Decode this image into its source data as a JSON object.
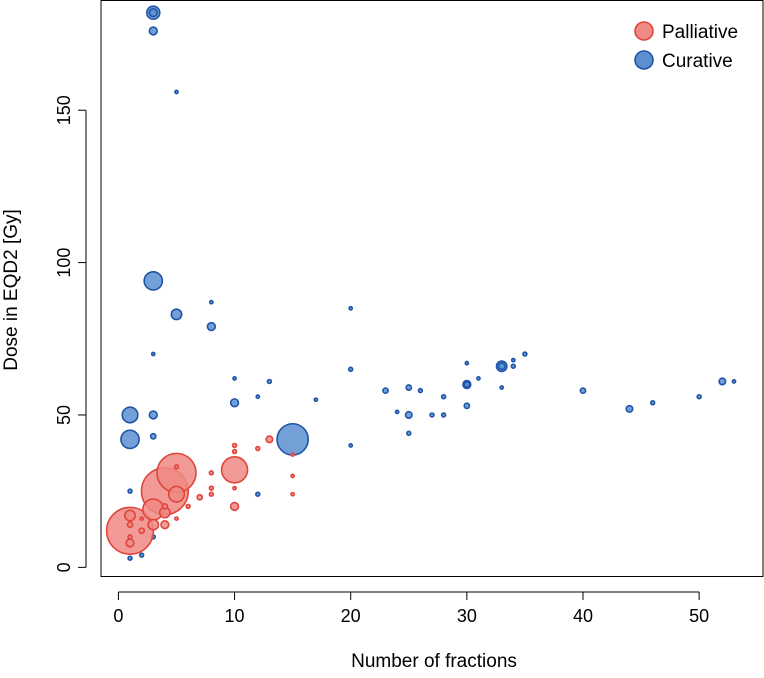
{
  "chart_data": {
    "type": "scatter",
    "title": "",
    "xlabel": "Number of fractions",
    "ylabel": "Dose in EQD2 [Gy]",
    "xlim": [
      -1.5,
      55.5
    ],
    "ylim": [
      -3,
      186
    ],
    "xticks": [
      0,
      10,
      20,
      30,
      40,
      50
    ],
    "yticks": [
      0,
      50,
      100,
      150
    ],
    "x_tick_labels": [
      "0",
      "10",
      "20",
      "30",
      "40",
      "50"
    ],
    "y_tick_labels": [
      "0",
      "50",
      "100",
      "150"
    ],
    "grid": false,
    "legend_position": "top-right",
    "bubble_size_note": "marker size encodes relative frequency (unitless)",
    "series": [
      {
        "name": "Curative",
        "color": "#5b8fd0",
        "stroke": "#1f55a8",
        "points": [
          {
            "x": 3,
            "y": 182,
            "s": 5
          },
          {
            "x": 3,
            "y": 182,
            "s": 3
          },
          {
            "x": 3,
            "y": 176,
            "s": 3
          },
          {
            "x": 5,
            "y": 156,
            "s": 1
          },
          {
            "x": 3,
            "y": 94,
            "s": 7
          },
          {
            "x": 5,
            "y": 83,
            "s": 4
          },
          {
            "x": 8,
            "y": 87,
            "s": 1
          },
          {
            "x": 8,
            "y": 79,
            "s": 3
          },
          {
            "x": 3,
            "y": 70,
            "s": 1
          },
          {
            "x": 10,
            "y": 62,
            "s": 1
          },
          {
            "x": 10,
            "y": 54,
            "s": 3
          },
          {
            "x": 12,
            "y": 56,
            "s": 1
          },
          {
            "x": 13,
            "y": 61,
            "s": 1.5
          },
          {
            "x": 17,
            "y": 55,
            "s": 1
          },
          {
            "x": 20,
            "y": 85,
            "s": 1
          },
          {
            "x": 20,
            "y": 65,
            "s": 1.5
          },
          {
            "x": 20,
            "y": 40,
            "s": 1
          },
          {
            "x": 23,
            "y": 58,
            "s": 2
          },
          {
            "x": 24,
            "y": 51,
            "s": 1
          },
          {
            "x": 25,
            "y": 59,
            "s": 2
          },
          {
            "x": 25,
            "y": 50,
            "s": 2.5
          },
          {
            "x": 25,
            "y": 44,
            "s": 1.5
          },
          {
            "x": 26,
            "y": 58,
            "s": 1.5
          },
          {
            "x": 27,
            "y": 50,
            "s": 1.5
          },
          {
            "x": 28,
            "y": 56,
            "s": 1.5
          },
          {
            "x": 28,
            "y": 50,
            "s": 1.5
          },
          {
            "x": 30,
            "y": 67,
            "s": 1
          },
          {
            "x": 30,
            "y": 60,
            "s": 3
          },
          {
            "x": 30,
            "y": 60,
            "s": 2
          },
          {
            "x": 30,
            "y": 53,
            "s": 2
          },
          {
            "x": 31,
            "y": 62,
            "s": 1
          },
          {
            "x": 33,
            "y": 66,
            "s": 4
          },
          {
            "x": 33,
            "y": 66,
            "s": 2.5
          },
          {
            "x": 33,
            "y": 59,
            "s": 1
          },
          {
            "x": 34,
            "y": 68,
            "s": 1
          },
          {
            "x": 34,
            "y": 66,
            "s": 1.5
          },
          {
            "x": 35,
            "y": 70,
            "s": 1.5
          },
          {
            "x": 40,
            "y": 58,
            "s": 2
          },
          {
            "x": 44,
            "y": 52,
            "s": 2.5
          },
          {
            "x": 46,
            "y": 54,
            "s": 1.5
          },
          {
            "x": 50,
            "y": 56,
            "s": 1.5
          },
          {
            "x": 52,
            "y": 61,
            "s": 2.5
          },
          {
            "x": 53,
            "y": 61,
            "s": 1
          },
          {
            "x": 1,
            "y": 50,
            "s": 6
          },
          {
            "x": 1,
            "y": 42,
            "s": 7
          },
          {
            "x": 3,
            "y": 50,
            "s": 3
          },
          {
            "x": 3,
            "y": 43,
            "s": 2
          },
          {
            "x": 1,
            "y": 25,
            "s": 1.5
          },
          {
            "x": 12,
            "y": 24,
            "s": 1.5
          },
          {
            "x": 3,
            "y": 10,
            "s": 1.5
          },
          {
            "x": 1,
            "y": 3,
            "s": 1.5
          },
          {
            "x": 2,
            "y": 4,
            "s": 1.5
          },
          {
            "x": 15,
            "y": 42,
            "s": 12
          }
        ]
      },
      {
        "name": "Palliative",
        "color": "#f08a84",
        "stroke": "#e0453c",
        "points": [
          {
            "x": 1,
            "y": 12,
            "s": 18
          },
          {
            "x": 4,
            "y": 25,
            "s": 18
          },
          {
            "x": 5,
            "y": 31,
            "s": 15
          },
          {
            "x": 10,
            "y": 32,
            "s": 10
          },
          {
            "x": 3,
            "y": 19,
            "s": 8
          },
          {
            "x": 5,
            "y": 24,
            "s": 6
          },
          {
            "x": 3,
            "y": 14,
            "s": 4
          },
          {
            "x": 4,
            "y": 18,
            "s": 4
          },
          {
            "x": 1,
            "y": 17,
            "s": 4
          },
          {
            "x": 1,
            "y": 8,
            "s": 3
          },
          {
            "x": 1,
            "y": 14,
            "s": 2
          },
          {
            "x": 1,
            "y": 10,
            "s": 1.5
          },
          {
            "x": 2,
            "y": 12,
            "s": 2
          },
          {
            "x": 4,
            "y": 14,
            "s": 3
          },
          {
            "x": 4,
            "y": 20,
            "s": 2
          },
          {
            "x": 6,
            "y": 20,
            "s": 1.5
          },
          {
            "x": 7,
            "y": 23,
            "s": 2
          },
          {
            "x": 8,
            "y": 24,
            "s": 1.5
          },
          {
            "x": 8,
            "y": 26,
            "s": 1.5
          },
          {
            "x": 8,
            "y": 31,
            "s": 1.5
          },
          {
            "x": 10,
            "y": 20,
            "s": 3
          },
          {
            "x": 10,
            "y": 38,
            "s": 1.5
          },
          {
            "x": 10,
            "y": 40,
            "s": 1.5
          },
          {
            "x": 10,
            "y": 26,
            "s": 1
          },
          {
            "x": 12,
            "y": 39,
            "s": 1.5
          },
          {
            "x": 13,
            "y": 42,
            "s": 2.5
          },
          {
            "x": 15,
            "y": 30,
            "s": 1
          },
          {
            "x": 15,
            "y": 24,
            "s": 1
          },
          {
            "x": 15,
            "y": 37,
            "s": 1
          },
          {
            "x": 5,
            "y": 33,
            "s": 1.5
          },
          {
            "x": 5,
            "y": 16,
            "s": 1
          },
          {
            "x": 2,
            "y": 16,
            "s": 1
          }
        ]
      }
    ]
  }
}
